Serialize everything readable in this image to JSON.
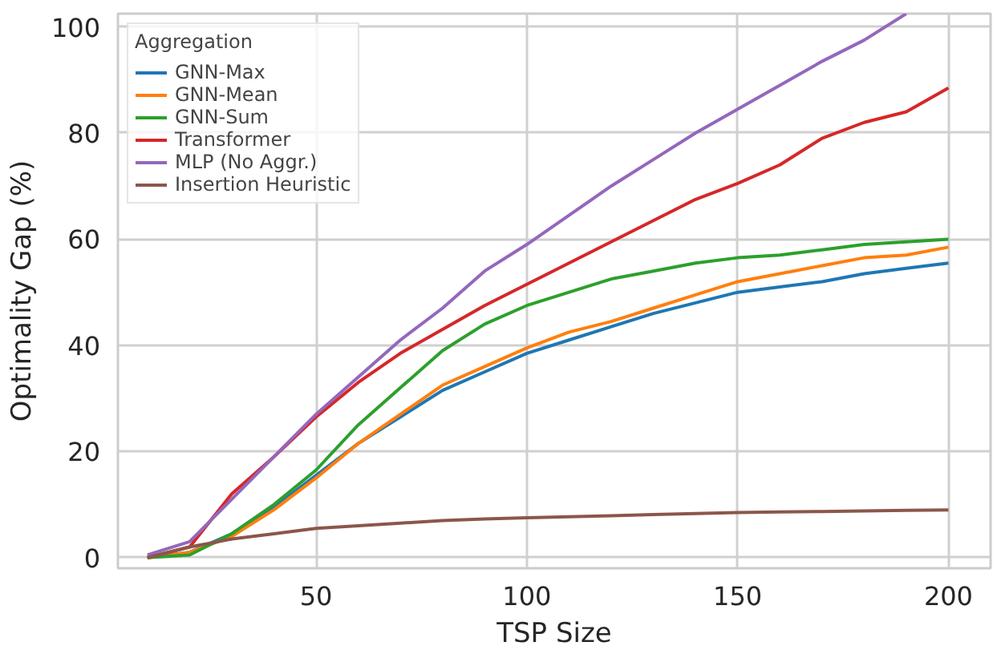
{
  "chart_data": {
    "type": "line",
    "xlabel": "TSP Size",
    "ylabel": "Optimality Gap (%)",
    "legend_title": "Aggregation",
    "x": [
      10,
      20,
      30,
      40,
      50,
      60,
      70,
      80,
      90,
      100,
      110,
      120,
      130,
      140,
      150,
      160,
      170,
      180,
      190,
      200
    ],
    "xlim": [
      3,
      210
    ],
    "ylim": [
      -2,
      102.5
    ],
    "xticks": [
      50,
      100,
      150,
      200
    ],
    "yticks": [
      0,
      20,
      40,
      60,
      80,
      100
    ],
    "grid": true,
    "legend": "top left",
    "line_style": "solid",
    "series": [
      {
        "name": "GNN-Max",
        "color": "#1f77b4",
        "values": [
          0,
          1,
          4.5,
          9.5,
          15.5,
          21.5,
          26.5,
          31.5,
          35,
          38.5,
          41,
          43.5,
          46,
          48,
          50,
          51,
          52,
          53.5,
          54.5,
          55.5
        ]
      },
      {
        "name": "GNN-Mean",
        "color": "#ff7f0e",
        "values": [
          0,
          1,
          4,
          9,
          15,
          21.5,
          27,
          32.5,
          36,
          39.5,
          42.5,
          44.5,
          47,
          49.5,
          52,
          53.5,
          55,
          56.5,
          57,
          58.5
        ]
      },
      {
        "name": "GNN-Sum",
        "color": "#2ca02c",
        "values": [
          0,
          0.5,
          4.5,
          10,
          16.5,
          25,
          32,
          39,
          44,
          47.5,
          50,
          52.5,
          54,
          55.5,
          56.5,
          57,
          58,
          59,
          59.5,
          60
        ]
      },
      {
        "name": "Transformer",
        "color": "#d62728",
        "values": [
          0,
          2,
          12,
          19,
          26.5,
          33,
          38.5,
          43,
          47.5,
          51.5,
          55.5,
          59.5,
          63.5,
          67.5,
          70.5,
          74,
          79,
          82,
          84,
          88.5
        ]
      },
      {
        "name": "MLP (No Aggr.)",
        "color": "#9467bd",
        "values": [
          0.5,
          3,
          11,
          19,
          27,
          34,
          41,
          47,
          54,
          59,
          64.5,
          70,
          75,
          80,
          84.5,
          89,
          93.5,
          97.5,
          102.5,
          null
        ]
      },
      {
        "name": "Insertion Heuristic",
        "color": "#8c564b",
        "values": [
          0,
          2,
          3.5,
          4.5,
          5.5,
          6,
          6.5,
          7,
          7.3,
          7.5,
          7.7,
          7.9,
          8.1,
          8.3,
          8.5,
          8.6,
          8.7,
          8.8,
          8.9,
          9
        ]
      }
    ]
  }
}
